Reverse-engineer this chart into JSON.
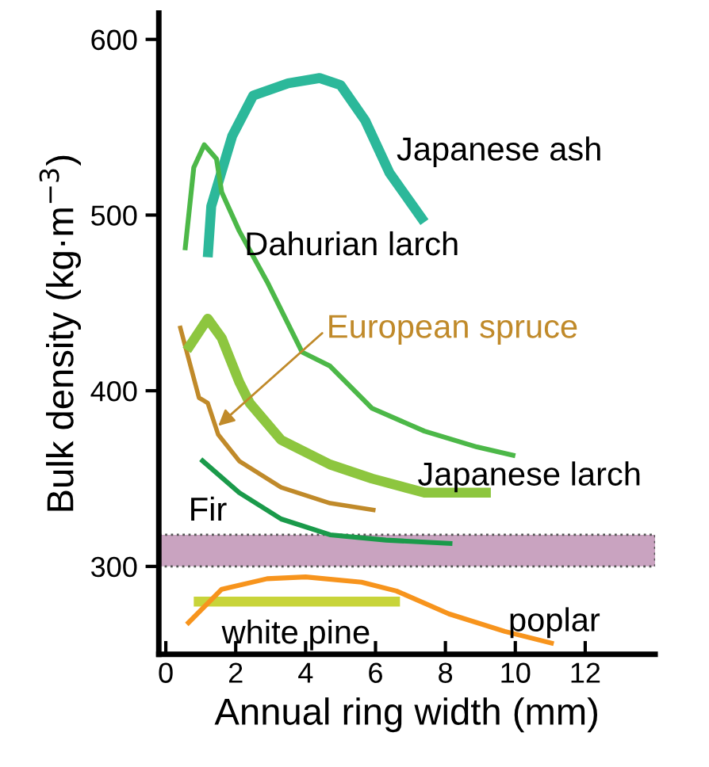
{
  "chart_data": {
    "type": "line",
    "xlabel": "Annual ring width (mm)",
    "ylabel": "Bulk density (kg·m$^{−3}$)",
    "xlim": [
      -0.2,
      14
    ],
    "xticks": [
      0,
      2,
      4,
      6,
      8,
      10,
      12
    ],
    "ylim": [
      250,
      615
    ],
    "yticks": [
      300,
      400,
      500,
      600
    ],
    "grid": false,
    "legend": false,
    "marker": "none",
    "line_style": "solid",
    "bands": [
      {
        "axis": "y",
        "from": 300,
        "to": 318,
        "color": "#c9a3c0"
      }
    ],
    "series": [
      {
        "name": "Japanese ash",
        "color": "#2cb89a",
        "x": [
          1.2,
          1.3,
          1.9,
          2.5,
          3.5,
          4.4,
          5.0,
          5.7,
          6.4,
          7.4
        ],
        "values": [
          476,
          505,
          545,
          568,
          575,
          578,
          574,
          554,
          524,
          496
        ]
      },
      {
        "name": "Dahurian larch",
        "color": "#4cb848",
        "x": [
          0.55,
          0.8,
          1.1,
          1.45,
          1.6,
          2.1,
          2.9,
          3.9,
          4.7,
          5.9,
          7.4,
          8.9,
          10.0
        ],
        "values": [
          480,
          527,
          540,
          532,
          513,
          491,
          462,
          422,
          414,
          390,
          377,
          368,
          363
        ]
      },
      {
        "name": "European spruce",
        "color": "#c08a2a",
        "x": [
          0.4,
          0.95,
          1.2,
          1.5,
          2.1,
          3.3,
          4.7,
          6.0
        ],
        "values": [
          437,
          396,
          393,
          375,
          360,
          345,
          336,
          332
        ]
      },
      {
        "name": "Japanese larch",
        "color": "#8dc63f",
        "x": [
          0.6,
          1.2,
          1.6,
          2.1,
          2.4,
          3.3,
          4.7,
          5.9,
          7.4,
          9.3
        ],
        "values": [
          423,
          441,
          430,
          405,
          393,
          372,
          358,
          350,
          342,
          342
        ]
      },
      {
        "name": "Fir",
        "color": "#1a9a4a",
        "x": [
          1.0,
          2.1,
          3.3,
          4.7,
          6.3,
          8.2
        ],
        "values": [
          361,
          342,
          327,
          318,
          315,
          313
        ]
      },
      {
        "name": "white pine",
        "color": "#c8d43a",
        "x": [
          0.8,
          6.7
        ],
        "values": [
          280,
          280
        ]
      },
      {
        "name": "poplar",
        "color": "#f7941d",
        "x": [
          0.6,
          1.6,
          2.9,
          4.0,
          5.6,
          6.6,
          8.1,
          9.7,
          11.1
        ],
        "values": [
          267,
          287,
          293,
          294,
          291,
          286,
          273,
          263,
          256
        ]
      }
    ]
  }
}
